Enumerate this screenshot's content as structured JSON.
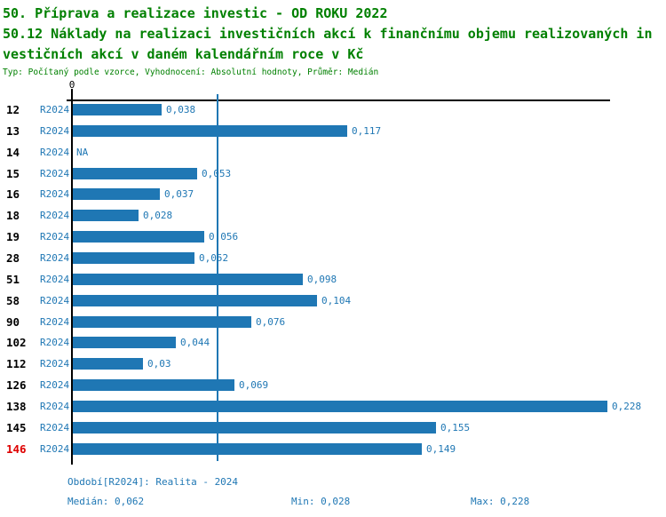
{
  "header": {
    "title_line1": "50. Příprava a realizace investic - OD ROKU 2022",
    "title_line2": "50.12 Náklady na realizaci investičních akcí k finančnímu objemu realizovaných in",
    "title_line3": "vestičních akcí v daném kalendářním roce v Kč",
    "subtitle": "Typ: Počítaný podle vzorce, Vyhodnocení: Absolutní hodnoty, Průměr: Medián"
  },
  "chart_data": {
    "type": "bar",
    "orientation": "horizontal",
    "title": "50.12 Náklady na realizaci investičních akcí k finančnímu objemu realizovaných investičních akcí v daném kalendářním roce v Kč",
    "x_axis": {
      "origin_label": "0",
      "range": [
        0,
        0.2295
      ],
      "gridlines": false
    },
    "median_line": {
      "value": 0.062
    },
    "series_name": "R2024",
    "rows": [
      {
        "id": "12",
        "period": "R2024",
        "value": 0.038,
        "value_label": "0,038",
        "highlight": false
      },
      {
        "id": "13",
        "period": "R2024",
        "value": 0.117,
        "value_label": "0,117",
        "highlight": false
      },
      {
        "id": "14",
        "period": "R2024",
        "value": null,
        "value_label": "NA",
        "highlight": false
      },
      {
        "id": "15",
        "period": "R2024",
        "value": 0.053,
        "value_label": "0,053",
        "highlight": false
      },
      {
        "id": "16",
        "period": "R2024",
        "value": 0.037,
        "value_label": "0,037",
        "highlight": false
      },
      {
        "id": "18",
        "period": "R2024",
        "value": 0.028,
        "value_label": "0,028",
        "highlight": false
      },
      {
        "id": "19",
        "period": "R2024",
        "value": 0.056,
        "value_label": "0,056",
        "highlight": false
      },
      {
        "id": "28",
        "period": "R2024",
        "value": 0.052,
        "value_label": "0,052",
        "highlight": false
      },
      {
        "id": "51",
        "period": "R2024",
        "value": 0.098,
        "value_label": "0,098",
        "highlight": false
      },
      {
        "id": "58",
        "period": "R2024",
        "value": 0.104,
        "value_label": "0,104",
        "highlight": false
      },
      {
        "id": "90",
        "period": "R2024",
        "value": 0.076,
        "value_label": "0,076",
        "highlight": false
      },
      {
        "id": "102",
        "period": "R2024",
        "value": 0.044,
        "value_label": "0,044",
        "highlight": false
      },
      {
        "id": "112",
        "period": "R2024",
        "value": 0.03,
        "value_label": "0,03",
        "highlight": false
      },
      {
        "id": "126",
        "period": "R2024",
        "value": 0.069,
        "value_label": "0,069",
        "highlight": false
      },
      {
        "id": "138",
        "period": "R2024",
        "value": 0.228,
        "value_label": "0,228",
        "highlight": false
      },
      {
        "id": "145",
        "period": "R2024",
        "value": 0.155,
        "value_label": "0,155",
        "highlight": false
      },
      {
        "id": "146",
        "period": "R2024",
        "value": 0.149,
        "value_label": "0,149",
        "highlight": true
      }
    ]
  },
  "footer": {
    "period_info": "Období[R2024]: Realita - 2024",
    "median": "Medián: 0,062",
    "min": "Min: 0,028",
    "max": "Max: 0,228"
  },
  "colors": {
    "title_green": "#008000",
    "bar_blue": "#1f77b4",
    "text_blue": "#1f77b4",
    "highlight_red": "#de0000",
    "axis_black": "#000000"
  }
}
